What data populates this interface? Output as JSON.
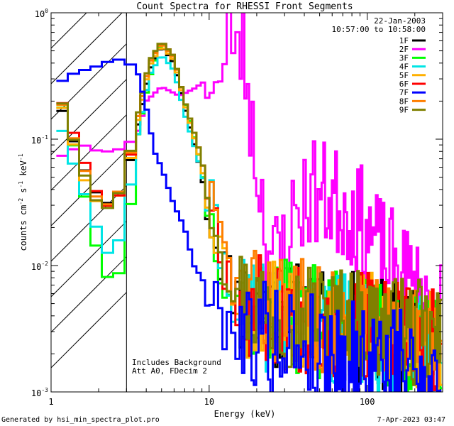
{
  "chart_data": {
    "type": "line",
    "title": "Count Spectra for RHESSI Front Segments",
    "xlabel": "Energy (keV)",
    "ylabel_parts": [
      "counts cm",
      "-2",
      " s",
      "-1",
      " keV",
      "-1"
    ],
    "xscale": "log",
    "yscale": "log",
    "xlim": [
      1,
      300
    ],
    "ylim": [
      0.001,
      1
    ],
    "x_ticks": [
      {
        "value": 1,
        "label": "1"
      },
      {
        "value": 10,
        "label": "10"
      },
      {
        "value": 100,
        "label": "100"
      }
    ],
    "y_ticks": [
      {
        "value": 1,
        "base": "10",
        "exp": "0"
      },
      {
        "value": 0.1,
        "base": "10",
        "exp": "-1"
      },
      {
        "value": 0.01,
        "base": "10",
        "exp": "-2"
      },
      {
        "value": 0.001,
        "base": "10",
        "exp": "-3"
      }
    ],
    "hatched_region": [
      1,
      3
    ],
    "date": "22-Jan-2003",
    "time_range": "10:57:00 to 10:58:00",
    "annotations": [
      "Includes Background",
      "Att A0, FDecim 2"
    ],
    "series": [
      {
        "name": "1F",
        "color": "#000000",
        "seed": 11,
        "x": [
          1.1,
          1.3,
          1.6,
          2.0,
          2.4,
          2.9,
          3.5,
          4.2,
          5.0,
          6.0,
          7.0,
          8.5,
          10.5,
          13,
          16,
          20,
          25,
          30,
          40,
          50,
          60,
          80,
          100,
          130,
          160,
          200,
          250,
          290
        ],
        "y": [
          0.21,
          0.12,
          0.06,
          0.035,
          0.03,
          0.04,
          0.12,
          0.35,
          0.55,
          0.4,
          0.18,
          0.07,
          0.02,
          0.0085,
          0.005,
          0.0045,
          0.0042,
          0.004,
          0.0038,
          0.0036,
          0.0034,
          0.0032,
          0.003,
          0.0028,
          0.0026,
          0.0024,
          0.0022,
          0.002
        ]
      },
      {
        "name": "2F",
        "color": "#ff00ff",
        "seed": 23,
        "x": [
          1.1,
          1.3,
          1.6,
          2.0,
          2.4,
          2.9,
          3.3,
          3.6,
          4.0,
          5.0,
          6.5,
          8.0,
          9.5,
          11,
          12.5,
          13.2,
          13.6,
          14.5,
          16,
          17.5,
          19,
          21,
          23,
          26,
          30,
          35,
          40,
          45,
          50,
          60,
          70,
          80,
          100,
          120,
          150,
          180,
          220,
          260,
          290
        ],
        "y": [
          0.07,
          0.08,
          0.09,
          0.08,
          0.08,
          0.085,
          0.1,
          0.12,
          0.2,
          0.26,
          0.22,
          0.25,
          0.29,
          0.26,
          0.3,
          0.75,
          0.85,
          0.55,
          0.55,
          0.3,
          0.1,
          0.045,
          0.019,
          0.01,
          0.015,
          0.025,
          0.033,
          0.04,
          0.036,
          0.034,
          0.03,
          0.026,
          0.02,
          0.013,
          0.0095,
          0.0075,
          0.0055,
          0.0045,
          0.005
        ]
      },
      {
        "name": "3F",
        "color": "#00ff00",
        "seed": 37,
        "x": [
          1.1,
          1.3,
          1.6,
          2.0,
          2.4,
          2.9,
          3.5,
          4.2,
          5.0,
          6.0,
          7.0,
          8.5,
          10.5,
          13,
          16,
          20,
          25,
          30,
          40,
          50,
          60,
          80,
          100,
          130,
          160,
          200,
          250,
          290
        ],
        "y": [
          0.22,
          0.13,
          0.04,
          0.012,
          0.007,
          0.01,
          0.1,
          0.3,
          0.6,
          0.45,
          0.2,
          0.08,
          0.02,
          0.008,
          0.0048,
          0.0045,
          0.0043,
          0.004,
          0.0038,
          0.0036,
          0.0034,
          0.0032,
          0.003,
          0.0028,
          0.0026,
          0.0024,
          0.0022,
          0.002
        ]
      },
      {
        "name": "4F",
        "color": "#00e5e5",
        "seed": 41,
        "x": [
          1.1,
          1.3,
          1.6,
          2.0,
          2.4,
          2.9,
          3.5,
          4.2,
          5.0,
          6.0,
          7.0,
          8.5,
          10.5,
          13,
          16,
          20,
          25,
          30,
          40,
          50,
          60,
          80,
          100,
          130,
          160,
          200,
          250,
          290
        ],
        "y": [
          0.15,
          0.08,
          0.04,
          0.018,
          0.011,
          0.02,
          0.1,
          0.32,
          0.47,
          0.35,
          0.16,
          0.07,
          0.025,
          0.008,
          0.0045,
          0.0042,
          0.004,
          0.0038,
          0.0036,
          0.0034,
          0.0032,
          0.003,
          0.0028,
          0.0026,
          0.0024,
          0.0022,
          0.002,
          0.0019
        ]
      },
      {
        "name": "5F",
        "color": "#ffb000",
        "seed": 53,
        "x": [
          1.1,
          1.3,
          1.6,
          2.0,
          2.4,
          2.9,
          3.5,
          4.2,
          5.0,
          6.0,
          7.0,
          8.5,
          10.5,
          13,
          16,
          20,
          25,
          30,
          40,
          50,
          60,
          80,
          100,
          130,
          160,
          200,
          250,
          290
        ],
        "y": [
          0.23,
          0.12,
          0.05,
          0.03,
          0.03,
          0.04,
          0.13,
          0.38,
          0.55,
          0.42,
          0.19,
          0.08,
          0.025,
          0.009,
          0.005,
          0.0048,
          0.0045,
          0.0042,
          0.004,
          0.0038,
          0.0036,
          0.0034,
          0.0032,
          0.003,
          0.0028,
          0.0026,
          0.0024,
          0.0022
        ]
      },
      {
        "name": "6F",
        "color": "#ff0000",
        "seed": 67,
        "x": [
          1.1,
          1.3,
          1.6,
          2.0,
          2.4,
          2.9,
          3.5,
          4.2,
          5.0,
          6.0,
          7.0,
          8.5,
          10.5,
          13,
          16,
          20,
          25,
          30,
          40,
          50,
          60,
          80,
          100,
          130,
          160,
          200,
          250,
          290
        ],
        "y": [
          0.24,
          0.14,
          0.07,
          0.035,
          0.028,
          0.042,
          0.14,
          0.4,
          0.6,
          0.45,
          0.2,
          0.09,
          0.03,
          0.009,
          0.005,
          0.0046,
          0.0044,
          0.0042,
          0.004,
          0.0038,
          0.0036,
          0.0034,
          0.0032,
          0.003,
          0.0028,
          0.0026,
          0.0024,
          0.0022
        ]
      },
      {
        "name": "7F",
        "color": "#0000ff",
        "seed": 79,
        "x": [
          1.1,
          1.3,
          1.6,
          2.0,
          2.4,
          2.9,
          3.1,
          3.5,
          4.0,
          4.5,
          5.0,
          6.0,
          7.0,
          8.0,
          9.0,
          10.5,
          12,
          13,
          15,
          18,
          22,
          26,
          30,
          40,
          50,
          60,
          80,
          100,
          130,
          160,
          200,
          250,
          290
        ],
        "y": [
          0.27,
          0.32,
          0.35,
          0.38,
          0.42,
          0.43,
          0.4,
          0.35,
          0.18,
          0.08,
          0.06,
          0.03,
          0.02,
          0.01,
          0.008,
          0.005,
          0.004,
          0.0035,
          0.0032,
          0.003,
          0.0028,
          0.0027,
          0.0026,
          0.0024,
          0.0022,
          0.002,
          0.0019,
          0.0018,
          0.0017,
          0.0016,
          0.0015,
          0.0014,
          0.0013
        ]
      },
      {
        "name": "8F",
        "color": "#ff7f00",
        "seed": 83,
        "x": [
          1.1,
          1.3,
          1.6,
          2.0,
          2.4,
          2.9,
          3.5,
          4.2,
          5.0,
          6.0,
          7.0,
          8.5,
          10.5,
          13,
          16,
          20,
          25,
          30,
          40,
          50,
          60,
          80,
          100,
          130,
          160,
          200,
          250,
          290
        ],
        "y": [
          0.24,
          0.13,
          0.06,
          0.032,
          0.03,
          0.045,
          0.14,
          0.4,
          0.58,
          0.44,
          0.2,
          0.09,
          0.03,
          0.01,
          0.0055,
          0.005,
          0.0047,
          0.0044,
          0.0042,
          0.004,
          0.0038,
          0.0036,
          0.0034,
          0.0032,
          0.003,
          0.0028,
          0.0026,
          0.0024
        ]
      },
      {
        "name": "9F",
        "color": "#808000",
        "seed": 97,
        "x": [
          1.1,
          1.3,
          1.6,
          2.0,
          2.4,
          2.9,
          3.5,
          4.2,
          5.0,
          6.0,
          7.0,
          8.5,
          10.5,
          13,
          16,
          20,
          25,
          30,
          40,
          50,
          60,
          80,
          100,
          130,
          160,
          200,
          250,
          290
        ],
        "y": [
          0.25,
          0.13,
          0.055,
          0.03,
          0.028,
          0.045,
          0.15,
          0.42,
          0.6,
          0.45,
          0.2,
          0.09,
          0.03,
          0.01,
          0.0055,
          0.005,
          0.0047,
          0.0044,
          0.0042,
          0.004,
          0.0038,
          0.0036,
          0.0034,
          0.0032,
          0.003,
          0.0028,
          0.0026,
          0.0024
        ]
      }
    ]
  },
  "footer": {
    "left": "Generated by hsi_min_spectra_plot.pro",
    "right": "7-Apr-2023 03:47"
  }
}
